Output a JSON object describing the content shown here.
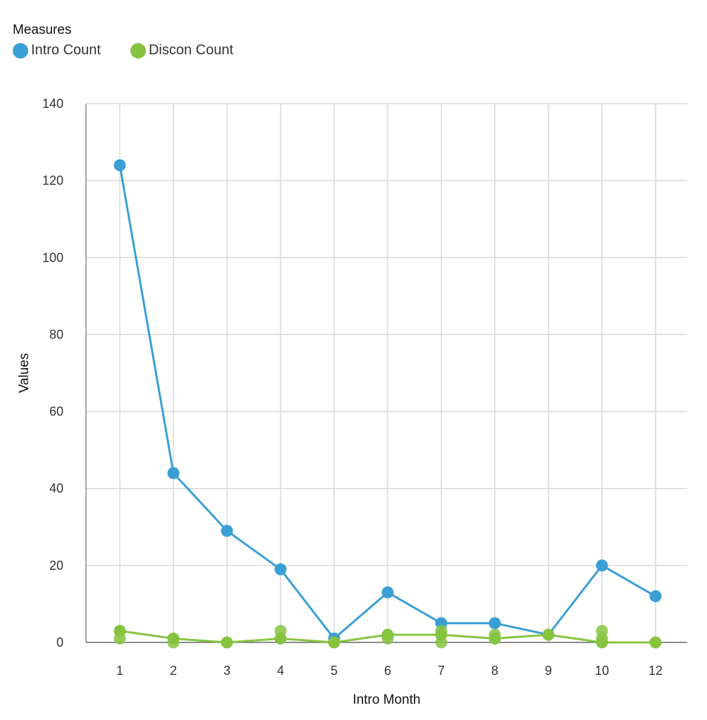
{
  "legend": {
    "title": "Measures",
    "items": [
      {
        "label": "Intro Count",
        "color": "#3a9fd5"
      },
      {
        "label": "Discon Count",
        "color": "#86c440"
      }
    ]
  },
  "chart_data": {
    "type": "line",
    "xlabel": "Intro Month",
    "ylabel": "Values",
    "categories": [
      "1",
      "2",
      "3",
      "4",
      "5",
      "6",
      "7",
      "8",
      "9",
      "10",
      "12"
    ],
    "ylim": [
      0,
      140
    ],
    "yticks": [
      0,
      20,
      40,
      60,
      80,
      100,
      120,
      140
    ],
    "grid": true,
    "legend_position": "top-left",
    "series": [
      {
        "name": "Intro Count",
        "color": "#3a9fd5",
        "values": [
          124,
          44,
          29,
          19,
          1,
          13,
          5,
          5,
          2,
          20,
          12
        ]
      },
      {
        "name": "Discon Count",
        "color": "#86c440",
        "values": [
          3,
          1,
          0,
          1,
          0,
          2,
          2,
          1,
          2,
          0,
          0
        ],
        "extra_points": [
          {
            "x": "1",
            "y": 1
          },
          {
            "x": "2",
            "y": 0
          },
          {
            "x": "4",
            "y": 3
          },
          {
            "x": "6",
            "y": 1
          },
          {
            "x": "7",
            "y": 3
          },
          {
            "x": "7",
            "y": 0
          },
          {
            "x": "8",
            "y": 2
          },
          {
            "x": "10",
            "y": 3
          },
          {
            "x": "10",
            "y": 1
          }
        ]
      }
    ]
  }
}
